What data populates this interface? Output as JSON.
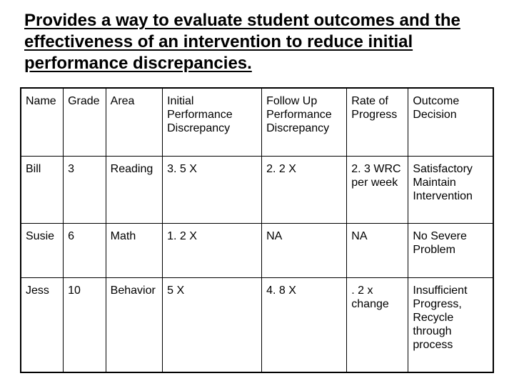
{
  "title": "Provides a way to evaluate student outcomes and the effectiveness of an intervention to reduce initial performance discrepancies.",
  "table": {
    "col_widths_pct": [
      9,
      9,
      12,
      21,
      18,
      13,
      18
    ],
    "header_fontsize": 16,
    "cell_fontsize": 16,
    "border_color": "#000000",
    "background_color": "#ffffff",
    "columns": [
      "Name",
      "Grade",
      "Area",
      "Initial Performance Discrepancy",
      "Follow Up Performance Discrepancy",
      "Rate of Progress",
      "Outcome Decision"
    ],
    "rows": [
      {
        "name": "Bill",
        "grade": "3",
        "area": "Reading",
        "initial": "3. 5 X",
        "followup": "2. 2 X",
        "rate": "2. 3 WRC per week",
        "outcome": "Satisfactory Maintain Intervention"
      },
      {
        "name": "Susie",
        "grade": "6",
        "area": "Math",
        "initial": "1. 2 X",
        "followup": "NA",
        "rate": "NA",
        "outcome": "No Severe Problem"
      },
      {
        "name": "Jess",
        "grade": "10",
        "area": "Behavior",
        "initial": "5 X",
        "followup": "4. 8 X",
        "rate": ". 2 x change",
        "outcome": "Insufficient Progress, Recycle through process"
      }
    ]
  },
  "title_fontsize": 24,
  "title_weight": 700,
  "text_color": "#000000"
}
